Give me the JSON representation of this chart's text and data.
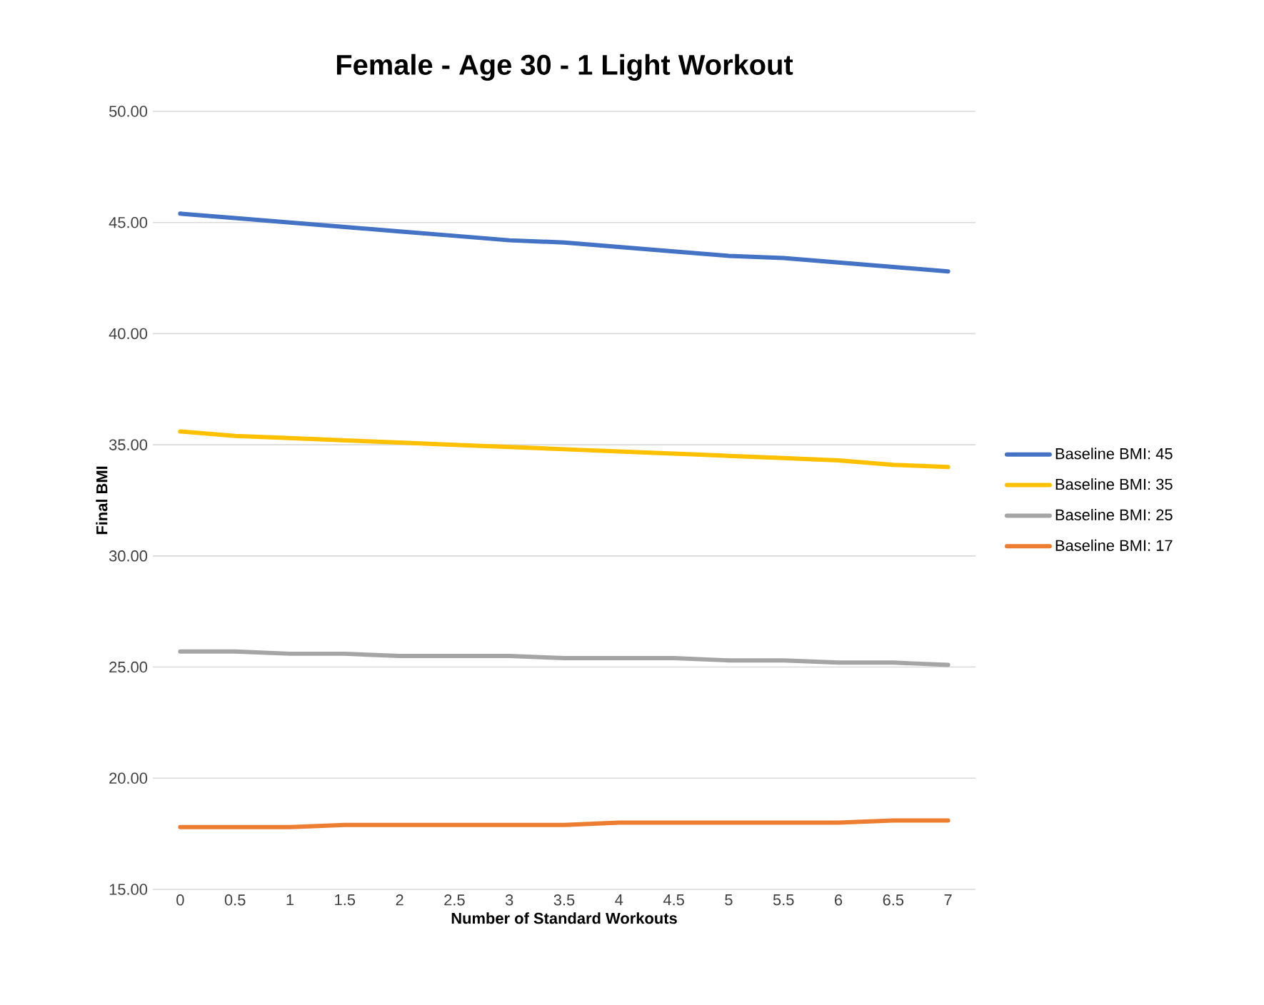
{
  "chart_data": {
    "type": "line",
    "title": "Female - Age 30 - 1 Light Workout",
    "xlabel": "Number of Standard Workouts",
    "ylabel": "Final BMI",
    "categories": [
      "0",
      "0.5",
      "1",
      "1.5",
      "2",
      "2.5",
      "3",
      "3.5",
      "4",
      "4.5",
      "5",
      "5.5",
      "6",
      "6.5",
      "7"
    ],
    "series": [
      {
        "name": "Baseline BMI: 17",
        "color": "#ed7d31",
        "values": [
          17.8,
          17.8,
          17.8,
          17.9,
          17.9,
          17.9,
          17.9,
          17.9,
          18.0,
          18.0,
          18.0,
          18.0,
          18.0,
          18.1,
          18.1
        ]
      },
      {
        "name": "Baseline BMI: 25",
        "color": "#a5a5a5",
        "values": [
          25.7,
          25.7,
          25.6,
          25.6,
          25.5,
          25.5,
          25.5,
          25.4,
          25.4,
          25.4,
          25.3,
          25.3,
          25.2,
          25.2,
          25.1
        ]
      },
      {
        "name": "Baseline BMI: 35",
        "color": "#ffc000",
        "values": [
          35.6,
          35.4,
          35.3,
          35.2,
          35.1,
          35.0,
          34.9,
          34.8,
          34.7,
          34.6,
          34.5,
          34.4,
          34.3,
          34.1,
          34.0
        ]
      },
      {
        "name": "Baseline BMI: 45",
        "color": "#4472c4",
        "values": [
          45.4,
          45.2,
          45.0,
          44.8,
          44.6,
          44.4,
          44.2,
          44.1,
          43.9,
          43.7,
          43.5,
          43.4,
          43.2,
          43.0,
          42.8
        ]
      }
    ],
    "ylim": [
      15,
      50
    ],
    "yticks": [
      {
        "value": 15,
        "label": "15.00"
      },
      {
        "value": 20,
        "label": "20.00"
      },
      {
        "value": 25,
        "label": "25.00"
      },
      {
        "value": 30,
        "label": "30.00"
      },
      {
        "value": 35,
        "label": "35.00"
      },
      {
        "value": 40,
        "label": "40.00"
      },
      {
        "value": 45,
        "label": "45.00"
      },
      {
        "value": 50,
        "label": "50.00"
      }
    ],
    "grid": "y",
    "legend": "right",
    "marker": "none",
    "line_style": "solid"
  }
}
